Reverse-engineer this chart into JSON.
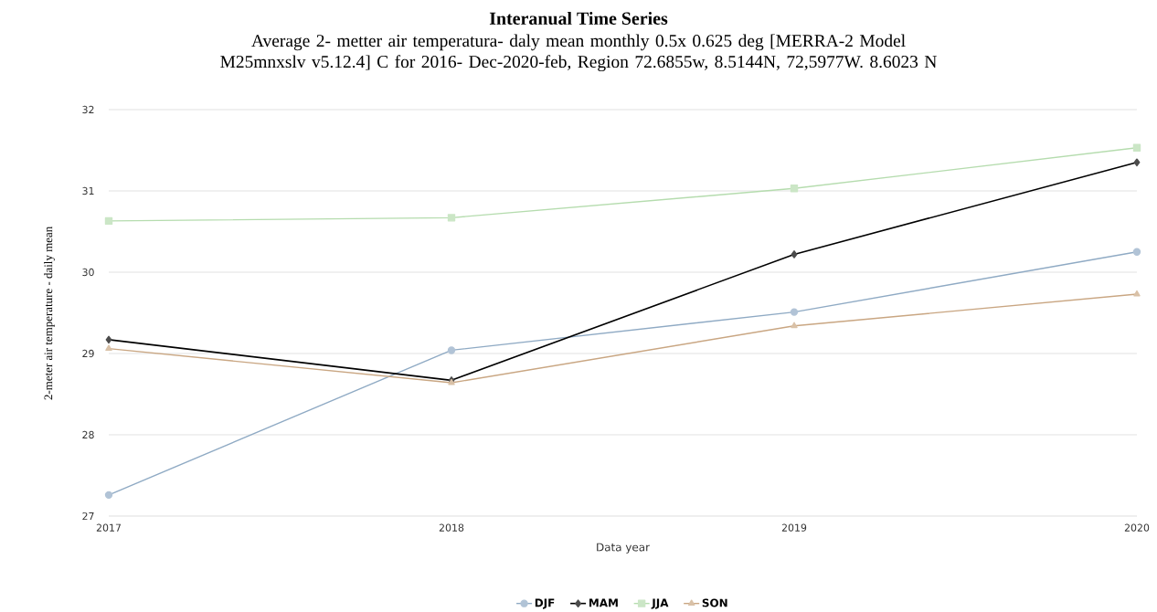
{
  "chart_data": {
    "type": "line",
    "title": "Interanual Time Series",
    "subtitle": "Average 2- metter air temperatura- daly mean monthly 0.5x 0.625 deg [MERRA-2 Model M25mnxslv v5.12.4] C for 2016- Dec-2020-feb, Region 72.6855w, 8.5144N, 72,5977W. 8.6023 N",
    "xlabel": "Data year",
    "ylabel": "2-meter air temperature - daily mean",
    "x": [
      2017,
      2018,
      2019,
      2020
    ],
    "series": [
      {
        "name": "DJF",
        "color": "#8faac4",
        "marker": "circle",
        "values": [
          27.26,
          29.04,
          29.51,
          30.25
        ]
      },
      {
        "name": "MAM",
        "color": "#000000",
        "marker": "diamond",
        "values": [
          29.17,
          28.67,
          30.22,
          31.35
        ]
      },
      {
        "name": "JJA",
        "color": "#b5dcae",
        "marker": "square",
        "values": [
          30.63,
          30.67,
          31.03,
          31.53
        ]
      },
      {
        "name": "SON",
        "color": "#c9a682",
        "marker": "triangle",
        "values": [
          29.06,
          28.64,
          29.34,
          29.73
        ]
      }
    ],
    "xlim": [
      2017,
      2020
    ],
    "ylim": [
      27,
      32
    ],
    "xticks": [
      2017,
      2018,
      2019,
      2020
    ],
    "yticks": [
      27,
      28,
      29,
      30,
      31,
      32
    ],
    "grid": "y",
    "legend": "bottom",
    "line_style": "solid"
  }
}
